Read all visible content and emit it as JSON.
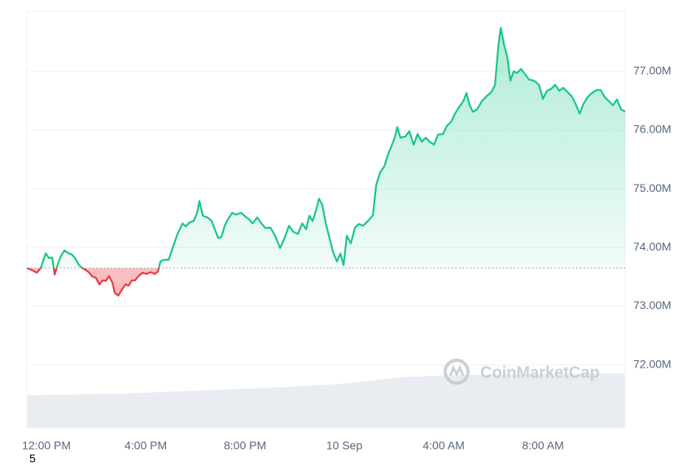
{
  "chart_data": {
    "type": "line",
    "watermark": "CoinMarketCap",
    "note": "5",
    "baseline": 73.65,
    "up_color": "#16c784",
    "down_color": "#ea3943",
    "xlim": [
      -0.79,
      23.31
    ],
    "xticks": [
      {
        "value": 0,
        "label": "12:00 PM"
      },
      {
        "value": 4,
        "label": "4:00 PM"
      },
      {
        "value": 8,
        "label": "8:00 PM"
      },
      {
        "value": 12,
        "label": "10 Sep"
      },
      {
        "value": 16,
        "label": "4:00 AM"
      },
      {
        "value": 20,
        "label": "8:00 AM"
      }
    ],
    "ylim": [
      70.93,
      78.02
    ],
    "yticks": [
      {
        "value": 72,
        "label": "72.00M"
      },
      {
        "value": 73,
        "label": "73.00M"
      },
      {
        "value": 74,
        "label": "74.00M"
      },
      {
        "value": 75,
        "label": "75.00M"
      },
      {
        "value": 76,
        "label": "76.00M"
      },
      {
        "value": 77,
        "label": "77.00M"
      }
    ],
    "grid": true,
    "x": [
      -0.79,
      -0.56,
      -0.39,
      -0.23,
      -0.03,
      0.1,
      0.23,
      0.33,
      0.46,
      0.59,
      0.72,
      0.89,
      1.02,
      1.15,
      1.31,
      1.44,
      1.57,
      1.7,
      1.84,
      2.0,
      2.13,
      2.26,
      2.39,
      2.52,
      2.66,
      2.75,
      2.89,
      3.05,
      3.18,
      3.31,
      3.44,
      3.57,
      3.7,
      3.87,
      4.03,
      4.2,
      4.36,
      4.49,
      4.59,
      4.72,
      4.92,
      5.08,
      5.28,
      5.48,
      5.61,
      5.77,
      5.93,
      6.07,
      6.16,
      6.3,
      6.49,
      6.66,
      6.79,
      6.92,
      7.05,
      7.18,
      7.31,
      7.48,
      7.64,
      7.84,
      8.03,
      8.16,
      8.3,
      8.49,
      8.66,
      8.82,
      9.02,
      9.21,
      9.41,
      9.61,
      9.77,
      9.93,
      10.13,
      10.3,
      10.46,
      10.59,
      10.72,
      10.85,
      10.98,
      11.11,
      11.25,
      11.38,
      11.54,
      11.7,
      11.84,
      11.97,
      12.1,
      12.26,
      12.43,
      12.59,
      12.75,
      12.95,
      13.15,
      13.28,
      13.44,
      13.61,
      13.74,
      13.9,
      14.03,
      14.13,
      14.26,
      14.46,
      14.62,
      14.79,
      14.95,
      15.12,
      15.28,
      15.44,
      15.61,
      15.77,
      15.97,
      16.13,
      16.3,
      16.46,
      16.62,
      16.79,
      16.92,
      17.05,
      17.18,
      17.34,
      17.54,
      17.74,
      17.93,
      18.07,
      18.2,
      18.3,
      18.43,
      18.56,
      18.69,
      18.82,
      18.95,
      19.12,
      19.28,
      19.44,
      19.64,
      19.84,
      20.0,
      20.16,
      20.33,
      20.49,
      20.66,
      20.82,
      20.98,
      21.15,
      21.31,
      21.48,
      21.64,
      21.8,
      21.97,
      22.16,
      22.33,
      22.49,
      22.66,
      22.82,
      22.98,
      23.15,
      23.31
    ],
    "values": [
      73.65,
      73.61,
      73.57,
      73.65,
      73.9,
      73.82,
      73.83,
      73.54,
      73.72,
      73.86,
      73.95,
      73.9,
      73.88,
      73.82,
      73.7,
      73.65,
      73.62,
      73.58,
      73.51,
      73.48,
      73.37,
      73.44,
      73.43,
      73.51,
      73.4,
      73.23,
      73.18,
      73.29,
      73.37,
      73.35,
      73.44,
      73.44,
      73.51,
      73.57,
      73.55,
      73.58,
      73.55,
      73.59,
      73.76,
      73.79,
      73.79,
      73.99,
      74.23,
      74.41,
      74.36,
      74.43,
      74.45,
      74.59,
      74.79,
      74.54,
      74.51,
      74.45,
      74.3,
      74.16,
      74.18,
      74.37,
      74.48,
      74.59,
      74.56,
      74.59,
      74.52,
      74.48,
      74.41,
      74.51,
      74.41,
      74.33,
      74.34,
      74.2,
      73.99,
      74.18,
      74.37,
      74.27,
      74.23,
      74.41,
      74.31,
      74.54,
      74.45,
      74.62,
      74.83,
      74.73,
      74.41,
      74.2,
      73.93,
      73.76,
      73.9,
      73.7,
      74.2,
      74.07,
      74.34,
      74.4,
      74.37,
      74.45,
      74.55,
      75.06,
      75.28,
      75.38,
      75.56,
      75.73,
      75.87,
      76.05,
      75.87,
      75.89,
      75.98,
      75.75,
      75.93,
      75.8,
      75.87,
      75.8,
      75.75,
      75.92,
      75.93,
      76.07,
      76.14,
      76.28,
      76.39,
      76.49,
      76.63,
      76.42,
      76.31,
      76.35,
      76.49,
      76.58,
      76.65,
      76.77,
      77.42,
      77.74,
      77.46,
      77.25,
      76.84,
      77.0,
      76.97,
      77.04,
      76.95,
      76.86,
      76.84,
      76.77,
      76.53,
      76.67,
      76.7,
      76.77,
      76.67,
      76.72,
      76.65,
      76.58,
      76.45,
      76.28,
      76.45,
      76.56,
      76.63,
      76.68,
      76.68,
      76.56,
      76.49,
      76.42,
      76.52,
      76.35,
      76.31
    ]
  }
}
